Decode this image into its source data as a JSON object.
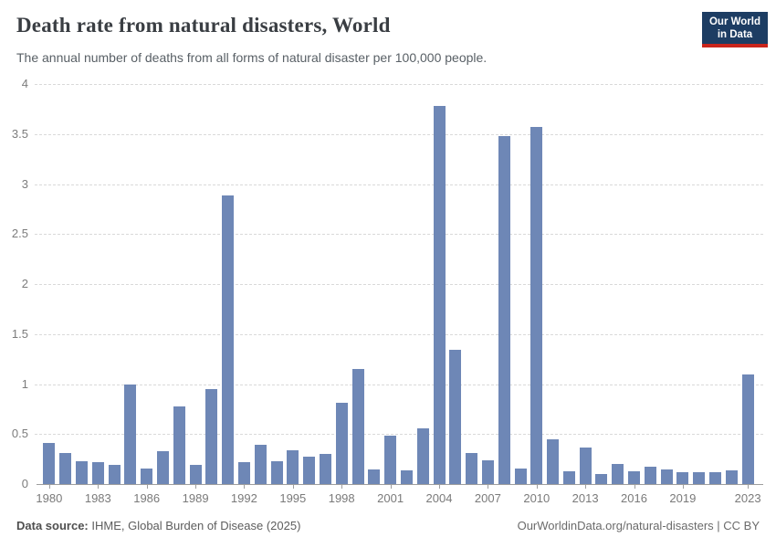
{
  "header": {
    "title": "Death rate from natural disasters, World",
    "subtitle": "The annual number of deaths from all forms of natural disaster per 100,000 people.",
    "logo": {
      "line1": "Our World",
      "line2": "in Data"
    }
  },
  "chart_data": {
    "type": "bar",
    "title": "Death rate from natural disasters, World",
    "subtitle": "The annual number of deaths from all forms of natural disaster per 100,000 people.",
    "xlabel": "",
    "ylabel": "",
    "ylim": [
      0,
      4
    ],
    "grid": true,
    "legend": "none",
    "bar_color": "#6e87b6",
    "x": [
      1980,
      1981,
      1982,
      1983,
      1984,
      1985,
      1986,
      1987,
      1988,
      1989,
      1990,
      1991,
      1992,
      1993,
      1994,
      1995,
      1996,
      1997,
      1998,
      1999,
      2000,
      2001,
      2002,
      2003,
      2004,
      2005,
      2006,
      2007,
      2008,
      2009,
      2010,
      2011,
      2012,
      2013,
      2014,
      2015,
      2016,
      2017,
      2018,
      2019,
      2020,
      2021,
      2022,
      2023
    ],
    "values": [
      0.41,
      0.31,
      0.23,
      0.22,
      0.19,
      1.0,
      0.16,
      0.33,
      0.78,
      0.19,
      0.95,
      2.89,
      0.22,
      0.39,
      0.23,
      0.34,
      0.27,
      0.3,
      0.81,
      1.15,
      0.15,
      0.48,
      0.14,
      0.56,
      3.78,
      1.34,
      0.31,
      0.24,
      3.48,
      0.16,
      3.57,
      0.45,
      0.13,
      0.37,
      0.1,
      0.2,
      0.13,
      0.17,
      0.15,
      0.12,
      0.12,
      0.12,
      0.14,
      1.1
    ],
    "y_ticks": [
      0,
      0.5,
      1,
      1.5,
      2,
      2.5,
      3,
      3.5,
      4
    ],
    "x_tick_labels": [
      1980,
      1983,
      1986,
      1989,
      1992,
      1995,
      1998,
      2001,
      2004,
      2007,
      2010,
      2013,
      2016,
      2019,
      2023
    ]
  },
  "footer": {
    "source_label": "Data source:",
    "source_text": "IHME, Global Burden of Disease (2025)",
    "link_text": "OurWorldinData.org/natural-disasters | CC BY"
  },
  "colors": {
    "bar": "#6e87b6",
    "gridline": "#d9d9d9",
    "axis": "#9e9e9e",
    "axis_text": "#7a7a7a",
    "title_text": "#3a3e43",
    "subtitle_text": "#596066",
    "logo_background": "#1d3d63",
    "logo_strip": "#c9251c"
  }
}
